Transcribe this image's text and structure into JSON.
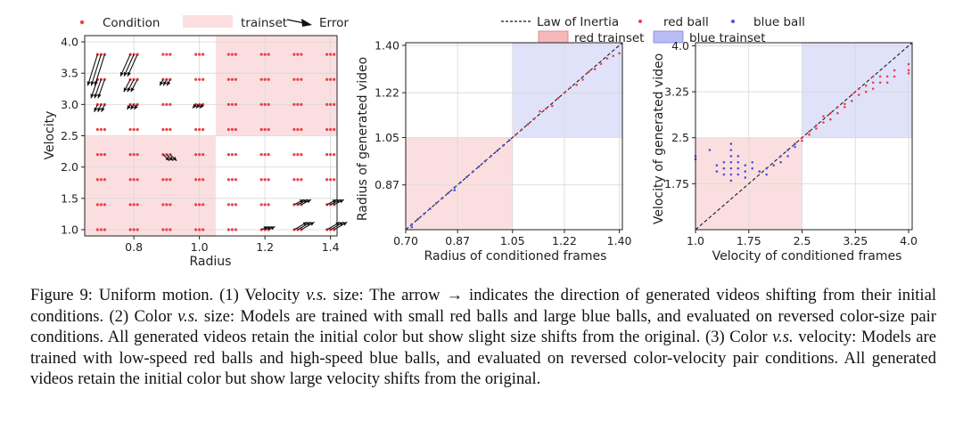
{
  "legend1": {
    "condition": "Condition",
    "trainset": "trainset",
    "error": "Error"
  },
  "legend23": {
    "law": "Law of Inertia",
    "red_ball": "red ball",
    "blue_ball": "blue ball",
    "red_trainset": "red trainset",
    "blue_trainset": "blue trainset"
  },
  "colors": {
    "red_region": "#fbdfe0",
    "blue_region": "#e0e2fa",
    "red_ball": "#e8434a",
    "blue_ball": "#4a55e0"
  },
  "chart_data": [
    {
      "type": "scatter",
      "subtype": "quiver",
      "xlabel": "Radius",
      "ylabel": "Velocity",
      "xlim": [
        0.65,
        1.42
      ],
      "ylim": [
        0.9,
        4.1
      ],
      "xticks": [
        "0.8",
        "1.0",
        "1.2",
        "1.4"
      ],
      "yticks": [
        "1.0",
        "1.5",
        "2.0",
        "2.5",
        "3.0",
        "3.5",
        "4.0"
      ],
      "trainset_regions": [
        {
          "x": [
            0.65,
            1.05
          ],
          "y": [
            0.9,
            2.5
          ]
        },
        {
          "x": [
            1.05,
            1.42
          ],
          "y": [
            2.5,
            4.1
          ]
        }
      ],
      "condition_x": [
        0.7,
        0.8,
        0.9,
        1.0,
        1.1,
        1.2,
        1.3,
        1.4
      ],
      "condition_y": [
        1.0,
        1.4,
        1.8,
        2.2,
        2.6,
        3.0,
        3.4,
        3.8
      ],
      "errors": [
        {
          "x": 0.7,
          "y": 3.8,
          "dx": -0.03,
          "dy": -0.5
        },
        {
          "x": 0.8,
          "y": 3.8,
          "dx": -0.03,
          "dy": -0.35
        },
        {
          "x": 0.7,
          "y": 3.4,
          "dx": -0.02,
          "dy": -0.3
        },
        {
          "x": 0.8,
          "y": 3.4,
          "dx": -0.02,
          "dy": -0.2
        },
        {
          "x": 0.9,
          "y": 3.4,
          "dx": -0.01,
          "dy": -0.1
        },
        {
          "x": 0.7,
          "y": 3.0,
          "dx": -0.01,
          "dy": -0.12
        },
        {
          "x": 0.8,
          "y": 3.0,
          "dx": -0.01,
          "dy": -0.08
        },
        {
          "x": 1.0,
          "y": 3.0,
          "dx": -0.01,
          "dy": -0.06
        },
        {
          "x": 0.9,
          "y": 2.2,
          "dx": 0.02,
          "dy": -0.1
        },
        {
          "x": 1.3,
          "y": 1.0,
          "dx": 0.04,
          "dy": 0.12
        },
        {
          "x": 1.4,
          "y": 1.0,
          "dx": 0.04,
          "dy": 0.12
        },
        {
          "x": 1.3,
          "y": 1.4,
          "dx": 0.03,
          "dy": 0.08
        },
        {
          "x": 1.4,
          "y": 1.4,
          "dx": 0.03,
          "dy": 0.08
        },
        {
          "x": 1.2,
          "y": 1.0,
          "dx": 0.02,
          "dy": 0.05
        }
      ]
    },
    {
      "type": "scatter",
      "xlabel": "Radius of conditioned frames",
      "ylabel": "Radius of generated video",
      "xlim": [
        0.7,
        1.41
      ],
      "ylim": [
        0.7,
        1.41
      ],
      "xticks": [
        "0.70",
        "0.87",
        "1.05",
        "1.22",
        "1.40"
      ],
      "yticks": [
        "0.87",
        "1.05",
        "1.22",
        "1.40"
      ],
      "grid": true,
      "red_trainset": {
        "x": [
          0.7,
          1.05
        ],
        "y": [
          0.7,
          1.05
        ]
      },
      "blue_trainset": {
        "x": [
          1.05,
          1.41
        ],
        "y": [
          1.05,
          1.41
        ]
      },
      "law_of_inertia": [
        [
          0.7,
          0.7
        ],
        [
          1.41,
          1.41
        ]
      ],
      "red_ball": [
        [
          1.06,
          1.06
        ],
        [
          1.08,
          1.08
        ],
        [
          1.1,
          1.1
        ],
        [
          1.12,
          1.12
        ],
        [
          1.14,
          1.15
        ],
        [
          1.16,
          1.16
        ],
        [
          1.18,
          1.17
        ],
        [
          1.2,
          1.2
        ],
        [
          1.22,
          1.22
        ],
        [
          1.24,
          1.24
        ],
        [
          1.26,
          1.25
        ],
        [
          1.28,
          1.27
        ],
        [
          1.3,
          1.3
        ],
        [
          1.32,
          1.31
        ],
        [
          1.34,
          1.33
        ],
        [
          1.36,
          1.35
        ],
        [
          1.38,
          1.36
        ],
        [
          1.4,
          1.37
        ]
      ],
      "blue_ball": [
        [
          0.72,
          0.71
        ],
        [
          0.72,
          0.72
        ],
        [
          0.74,
          0.74
        ],
        [
          0.76,
          0.76
        ],
        [
          0.78,
          0.78
        ],
        [
          0.8,
          0.8
        ],
        [
          0.82,
          0.82
        ],
        [
          0.84,
          0.84
        ],
        [
          0.86,
          0.85
        ],
        [
          0.86,
          0.86
        ],
        [
          0.88,
          0.88
        ],
        [
          0.9,
          0.9
        ],
        [
          0.92,
          0.92
        ],
        [
          0.94,
          0.94
        ],
        [
          0.96,
          0.96
        ],
        [
          0.98,
          0.98
        ],
        [
          1.0,
          1.0
        ],
        [
          1.02,
          1.02
        ],
        [
          1.04,
          1.04
        ]
      ]
    },
    {
      "type": "scatter",
      "xlabel": "Velocity of conditioned frames",
      "ylabel": "Velocity of generated video",
      "xlim": [
        1.0,
        4.05
      ],
      "ylim": [
        1.0,
        4.05
      ],
      "xticks": [
        "1.0",
        "1.75",
        "2.5",
        "3.25",
        "4.0"
      ],
      "yticks": [
        "1.75",
        "2.5",
        "3.25",
        "4.0"
      ],
      "grid": true,
      "red_trainset": {
        "x": [
          1.0,
          2.5
        ],
        "y": [
          1.0,
          2.5
        ]
      },
      "blue_trainset": {
        "x": [
          2.5,
          4.05
        ],
        "y": [
          2.5,
          4.05
        ]
      },
      "law_of_inertia": [
        [
          1.0,
          1.0
        ],
        [
          4.05,
          4.05
        ]
      ],
      "red_ball": [
        [
          2.5,
          2.45
        ],
        [
          2.5,
          2.5
        ],
        [
          2.6,
          2.55
        ],
        [
          2.6,
          2.6
        ],
        [
          2.7,
          2.65
        ],
        [
          2.7,
          2.7
        ],
        [
          2.8,
          2.75
        ],
        [
          2.8,
          2.85
        ],
        [
          2.9,
          2.8
        ],
        [
          2.9,
          2.9
        ],
        [
          3.0,
          2.9
        ],
        [
          3.0,
          3.0
        ],
        [
          3.1,
          3.0
        ],
        [
          3.1,
          3.05
        ],
        [
          3.2,
          3.1
        ],
        [
          3.2,
          3.2
        ],
        [
          3.3,
          3.2
        ],
        [
          3.3,
          3.3
        ],
        [
          3.4,
          3.25
        ],
        [
          3.4,
          3.35
        ],
        [
          3.5,
          3.3
        ],
        [
          3.5,
          3.4
        ],
        [
          3.5,
          3.5
        ],
        [
          3.6,
          3.4
        ],
        [
          3.6,
          3.5
        ],
        [
          3.7,
          3.4
        ],
        [
          3.7,
          3.5
        ],
        [
          3.8,
          3.5
        ],
        [
          3.8,
          3.6
        ],
        [
          4.0,
          3.55
        ],
        [
          4.0,
          3.6
        ],
        [
          4.0,
          3.7
        ]
      ],
      "blue_ball": [
        [
          1.0,
          2.15
        ],
        [
          1.0,
          2.2
        ],
        [
          1.2,
          2.3
        ],
        [
          1.3,
          1.95
        ],
        [
          1.3,
          2.05
        ],
        [
          1.4,
          1.9
        ],
        [
          1.4,
          2.0
        ],
        [
          1.4,
          2.1
        ],
        [
          1.5,
          1.8
        ],
        [
          1.5,
          1.9
        ],
        [
          1.5,
          2.0
        ],
        [
          1.5,
          2.1
        ],
        [
          1.5,
          2.2
        ],
        [
          1.5,
          2.3
        ],
        [
          1.5,
          2.4
        ],
        [
          1.6,
          1.9
        ],
        [
          1.6,
          2.0
        ],
        [
          1.6,
          2.1
        ],
        [
          1.6,
          2.2
        ],
        [
          1.7,
          1.85
        ],
        [
          1.7,
          1.95
        ],
        [
          1.7,
          2.05
        ],
        [
          1.8,
          2.0
        ],
        [
          1.8,
          2.1
        ],
        [
          1.9,
          1.95
        ],
        [
          2.0,
          1.9
        ],
        [
          2.0,
          2.0
        ],
        [
          2.1,
          2.05
        ],
        [
          2.2,
          2.1
        ],
        [
          2.2,
          2.2
        ],
        [
          2.3,
          2.2
        ],
        [
          2.3,
          2.3
        ],
        [
          2.4,
          2.35
        ],
        [
          2.4,
          2.4
        ]
      ]
    }
  ],
  "caption": {
    "p1": "Figure 9: Uniform motion. (1) Velocity ",
    "vs1": "v.s.",
    "p2": " size: The arrow → indicates the direction of generated videos shifting from their initial conditions. (2) Color ",
    "vs2": "v.s.",
    "p3": " size: Models are trained with small red balls and large blue balls, and evaluated on reversed color-size pair conditions. All generated videos retain the initial color but show slight size shifts from the original. (3) Color ",
    "vs3": "v.s.",
    "p4": " velocity: Models are trained with low-speed red balls and high-speed blue balls, and evaluated on reversed color-velocity pair conditions. All generated videos retain the initial color but show large velocity shifts from the original."
  }
}
